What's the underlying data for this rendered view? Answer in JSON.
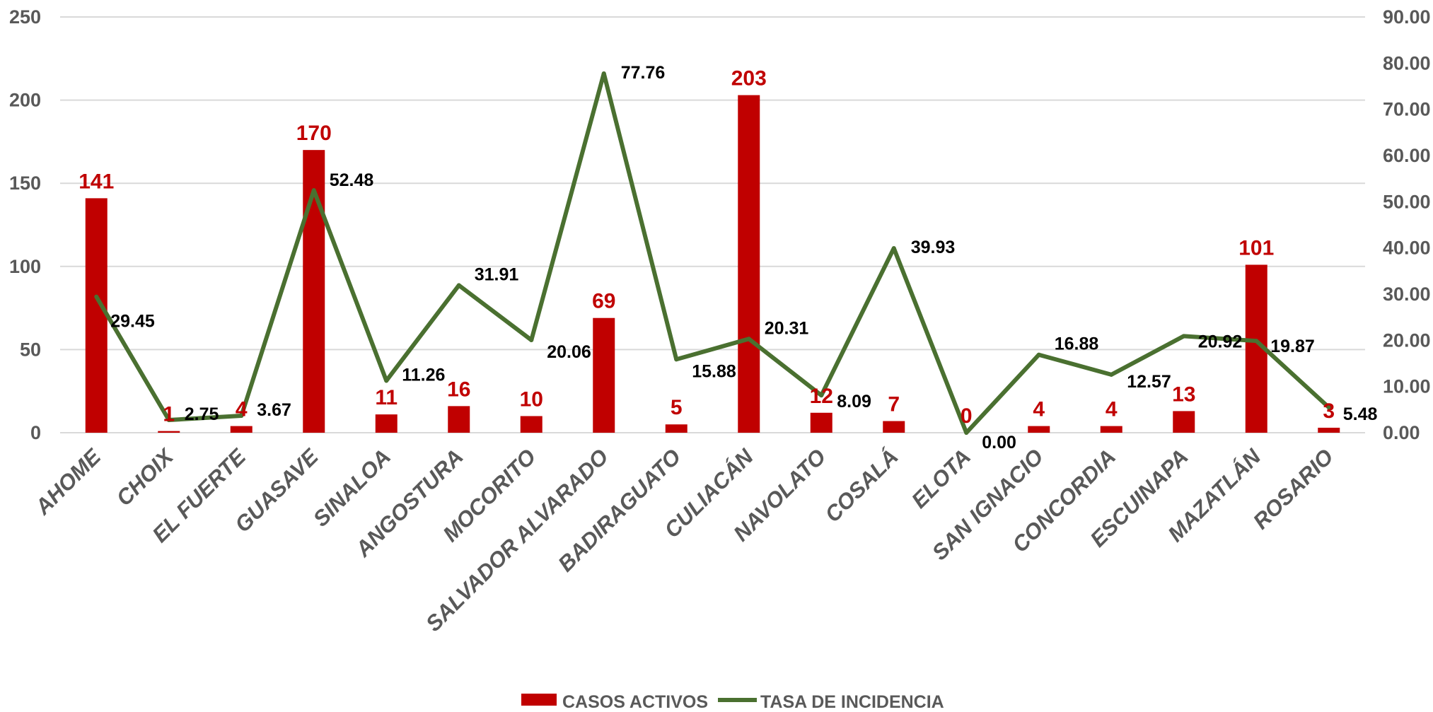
{
  "colors": {
    "bars": "#c00000",
    "line": "#4a7030",
    "axis_text": "#595959",
    "grid": "#d9d9d9",
    "line_labels": "#000000"
  },
  "chart_data": {
    "type": "bar+line",
    "title": "",
    "xlabel": "",
    "ylabel": "",
    "y2label": "",
    "grid": true,
    "legend_position": "bottom-center",
    "categories": [
      "AHOME",
      "CHOIX",
      "EL FUERTE",
      "GUASAVE",
      "SINALOA",
      "ANGOSTURA",
      "MOCORITO",
      "SALVADOR ALVARADO",
      "BADIRAGUATO",
      "CULIACÁN",
      "NAVOLATO",
      "COSALÁ",
      "ELOTA",
      "SAN IGNACIO",
      "CONCORDIA",
      "ESCUINAPA",
      "MAZATLÁN",
      "ROSARIO"
    ],
    "series": [
      {
        "name": "CASOS ACTIVOS",
        "type": "bar",
        "axis": "left",
        "values": [
          141,
          1,
          4,
          170,
          11,
          16,
          10,
          69,
          5,
          203,
          12,
          7,
          0,
          4,
          4,
          13,
          101,
          3
        ],
        "labels": [
          "141",
          "1",
          "4",
          "170",
          "11",
          "16",
          "10",
          "69",
          "5",
          "203",
          "12",
          "7",
          "0",
          "4",
          "4",
          "13",
          "101",
          "3"
        ]
      },
      {
        "name": "TASA DE INCIDENCIA",
        "type": "line",
        "axis": "right",
        "values": [
          29.45,
          2.75,
          3.67,
          52.48,
          11.26,
          31.91,
          20.06,
          77.76,
          15.88,
          20.31,
          8.09,
          39.93,
          0.0,
          16.88,
          12.57,
          20.92,
          19.87,
          5.48
        ],
        "labels": [
          "29.45",
          "2.75",
          "3.67",
          "52.48",
          "11.26",
          "31.91",
          "20.06",
          "77.76",
          "15.88",
          "20.31",
          "8.09",
          "39.93",
          "0.00",
          "16.88",
          "12.57",
          "20.92",
          "19.87",
          "5.48"
        ]
      }
    ],
    "y_left": {
      "min": 0,
      "max": 250,
      "ticks": [
        "0",
        "50",
        "100",
        "150",
        "200",
        "250"
      ]
    },
    "y_right": {
      "min": 0,
      "max": 90,
      "ticks": [
        "0.00",
        "10.00",
        "20.00",
        "30.00",
        "40.00",
        "50.00",
        "60.00",
        "70.00",
        "80.00",
        "90.00"
      ]
    }
  }
}
